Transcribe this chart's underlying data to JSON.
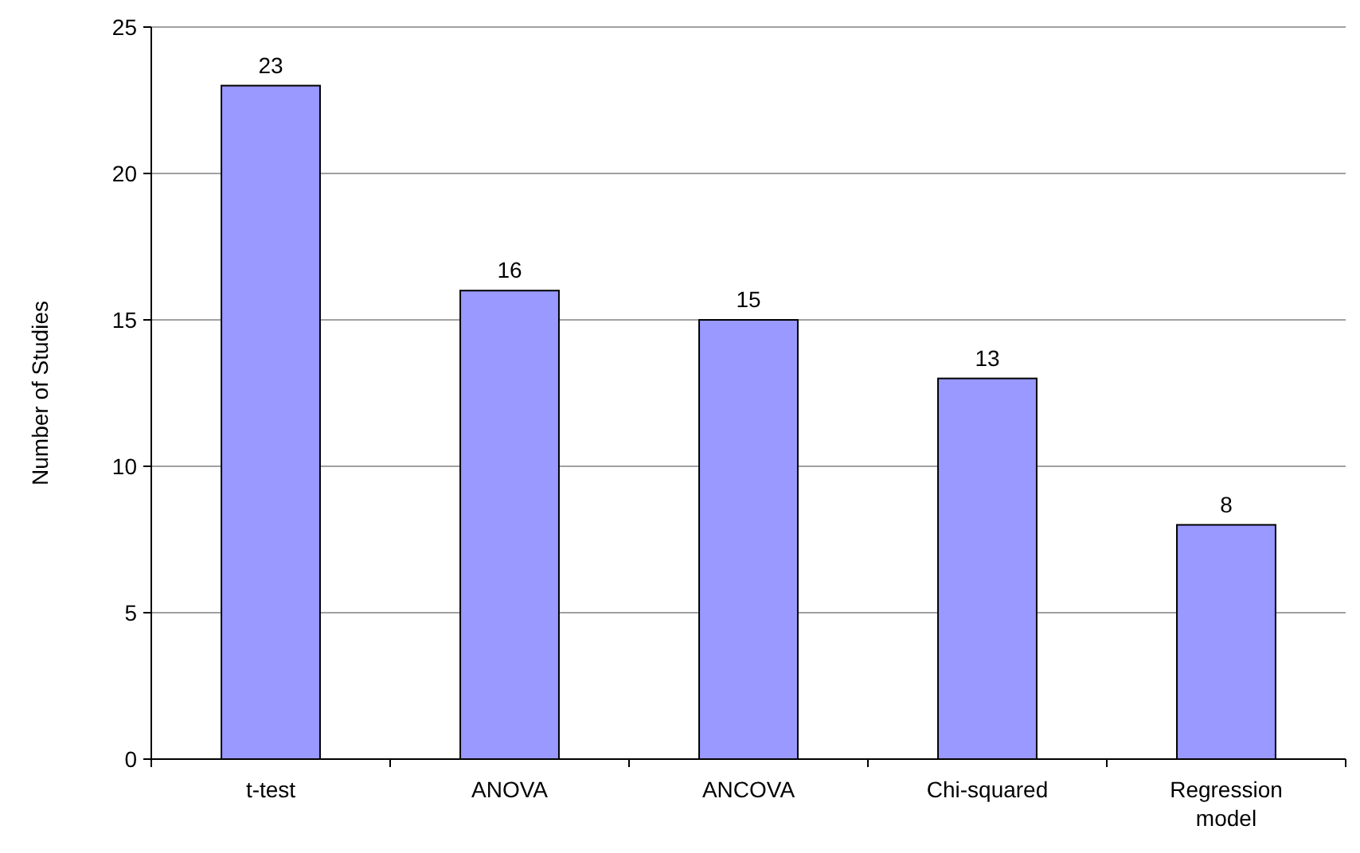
{
  "chart_data": {
    "type": "bar",
    "ylabel": "Number of Studies",
    "categories": [
      "t-test",
      "ANOVA",
      "ANCOVA",
      "Chi-squared",
      "Regression model"
    ],
    "values": [
      23,
      16,
      15,
      13,
      8
    ],
    "color": "#9999ff",
    "ylim": [
      0,
      25
    ],
    "yticks": [
      0,
      5,
      10,
      15,
      20,
      25
    ],
    "grid": "y",
    "data_labels": true
  }
}
